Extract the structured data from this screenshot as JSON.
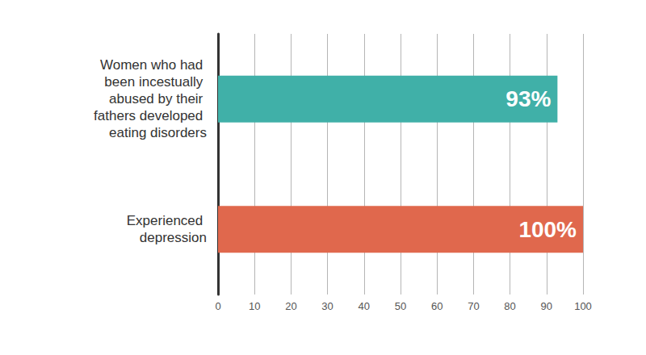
{
  "chart_data": {
    "type": "bar",
    "orientation": "horizontal",
    "categories": [
      "Women who had been incestually abused by their fathers developed eating disorders",
      "Experienced depression"
    ],
    "values": [
      93,
      100
    ],
    "value_labels": [
      "93%",
      "100%"
    ],
    "colors": [
      "#40b0a8",
      "#e0684d"
    ],
    "data_labels": true,
    "xlim": [
      0,
      100
    ],
    "xticks": [
      0,
      10,
      20,
      30,
      40,
      50,
      60,
      70,
      80,
      90,
      100
    ],
    "grid": true
  }
}
